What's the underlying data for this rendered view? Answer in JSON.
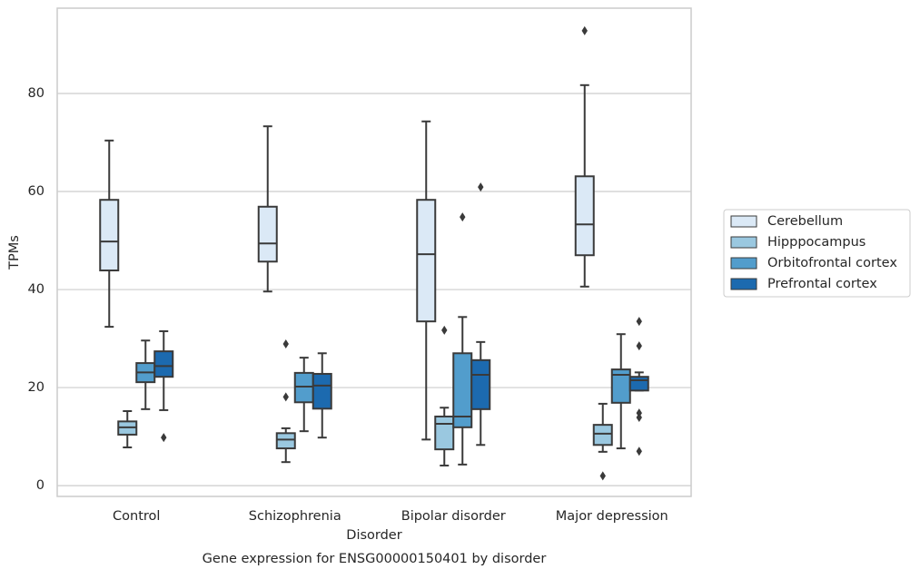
{
  "chart_data": {
    "type": "box",
    "title": "Gene expression for ENSG00000150401 by disorder",
    "xlabel": "Disorder",
    "ylabel": "TPMs",
    "categories": [
      "Control",
      "Schizophrenia",
      "Bipolar disorder",
      "Major depression"
    ],
    "ylim": [
      -2.2,
      97.4
    ],
    "yticks": [
      0,
      20,
      40,
      60,
      80
    ],
    "grid": true,
    "legend": "right",
    "series": [
      {
        "name": "Cerebellum",
        "color": "#dbe9f6",
        "values": [
          {
            "whislo": 32.4,
            "q1": 43.9,
            "med": 49.8,
            "q3": 58.3,
            "whishi": 70.4,
            "fliers": []
          },
          {
            "whislo": 39.6,
            "q1": 45.7,
            "med": 49.4,
            "q3": 56.9,
            "whishi": 73.3,
            "fliers": []
          },
          {
            "whislo": 9.4,
            "q1": 33.5,
            "med": 47.2,
            "q3": 58.3,
            "whishi": 74.3,
            "fliers": []
          },
          {
            "whislo": 40.6,
            "q1": 47.0,
            "med": 53.3,
            "q3": 63.1,
            "whishi": 81.7,
            "fliers": [
              92.8
            ]
          }
        ]
      },
      {
        "name": "Hipppocampus",
        "color": "#9ac8e0",
        "values": [
          {
            "whislo": 7.8,
            "q1": 10.4,
            "med": 11.9,
            "q3": 13.1,
            "whishi": 15.2,
            "fliers": []
          },
          {
            "whislo": 4.8,
            "q1": 7.6,
            "med": 9.4,
            "q3": 10.7,
            "whishi": 11.7,
            "fliers": [
              28.9,
              18.1
            ]
          },
          {
            "whislo": 4.1,
            "q1": 7.4,
            "med": 12.6,
            "q3": 14.1,
            "whishi": 15.9,
            "fliers": [
              31.7
            ]
          },
          {
            "whislo": 6.9,
            "q1": 8.3,
            "med": 10.6,
            "q3": 12.4,
            "whishi": 16.7,
            "fliers": [
              2.0
            ]
          }
        ]
      },
      {
        "name": "Orbitofrontal cortex",
        "color": "#529dcc",
        "values": [
          {
            "whislo": 15.6,
            "q1": 21.1,
            "med": 23.1,
            "q3": 25.0,
            "whishi": 29.6,
            "fliers": []
          },
          {
            "whislo": 11.1,
            "q1": 17.0,
            "med": 20.2,
            "q3": 23.0,
            "whishi": 26.1,
            "fliers": []
          },
          {
            "whislo": 4.3,
            "q1": 11.9,
            "med": 14.1,
            "q3": 27.0,
            "whishi": 34.4,
            "fliers": [
              54.8
            ]
          },
          {
            "whislo": 7.6,
            "q1": 16.9,
            "med": 22.6,
            "q3": 23.7,
            "whishi": 30.9,
            "fliers": []
          }
        ]
      },
      {
        "name": "Prefrontal cortex",
        "color": "#1c6aaf",
        "values": [
          {
            "whislo": 15.4,
            "q1": 22.2,
            "med": 24.4,
            "q3": 27.4,
            "whishi": 31.5,
            "fliers": [
              9.8
            ]
          },
          {
            "whislo": 9.8,
            "q1": 15.7,
            "med": 20.4,
            "q3": 22.8,
            "whishi": 27.0,
            "fliers": []
          },
          {
            "whislo": 8.3,
            "q1": 15.6,
            "med": 22.6,
            "q3": 25.6,
            "whishi": 29.3,
            "fliers": [
              60.9
            ]
          },
          {
            "whislo": 19.4,
            "q1": 19.4,
            "med": 21.5,
            "q3": 22.2,
            "whishi": 23.1,
            "fliers": [
              33.5,
              28.5,
              14.8,
              13.9,
              7.0
            ]
          }
        ]
      }
    ]
  }
}
